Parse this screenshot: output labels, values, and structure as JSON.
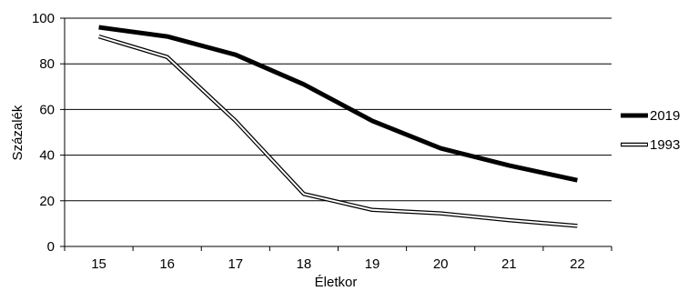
{
  "chart_data": {
    "type": "line",
    "title": "",
    "xlabel": "Életkor",
    "ylabel": "Százalék",
    "x": [
      15,
      16,
      17,
      18,
      19,
      20,
      21,
      22
    ],
    "ylim": [
      0,
      100
    ],
    "yticks": [
      0,
      20,
      40,
      60,
      80,
      100
    ],
    "grid": true,
    "legend_position": "right",
    "series": [
      {
        "name": "2019",
        "values": [
          96,
          92,
          84,
          71,
          55,
          43,
          35.5,
          29
        ],
        "style": "solid-thick",
        "color": "#000000"
      },
      {
        "name": "1993",
        "values": [
          92,
          83,
          55,
          23,
          16,
          14.5,
          11.5,
          9
        ],
        "style": "double-outline",
        "color": "#000000"
      }
    ]
  }
}
